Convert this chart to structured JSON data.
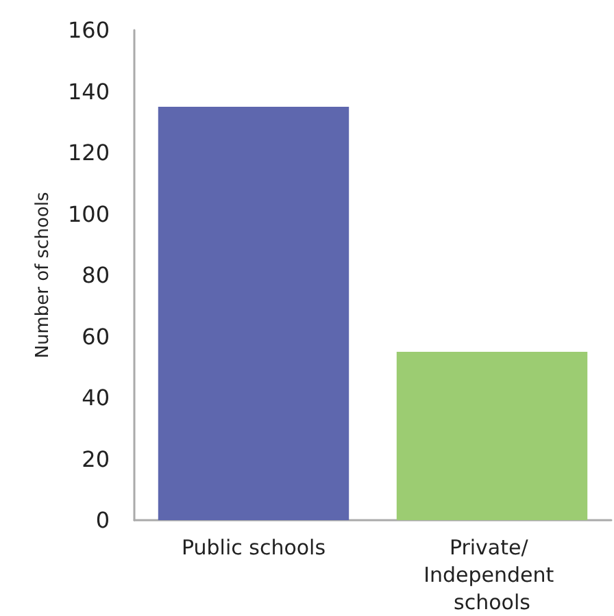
{
  "chart_data": {
    "type": "bar",
    "ylabel": "Number of schools",
    "categories": [
      "Public schools",
      "Private/ Independent schools"
    ],
    "values": [
      135,
      55
    ],
    "colors": [
      "#5e67ae",
      "#9ccc72"
    ],
    "ylim": [
      0,
      160
    ],
    "yticks": [
      0,
      20,
      40,
      60,
      80,
      100,
      120,
      140,
      160
    ],
    "grid": false
  }
}
